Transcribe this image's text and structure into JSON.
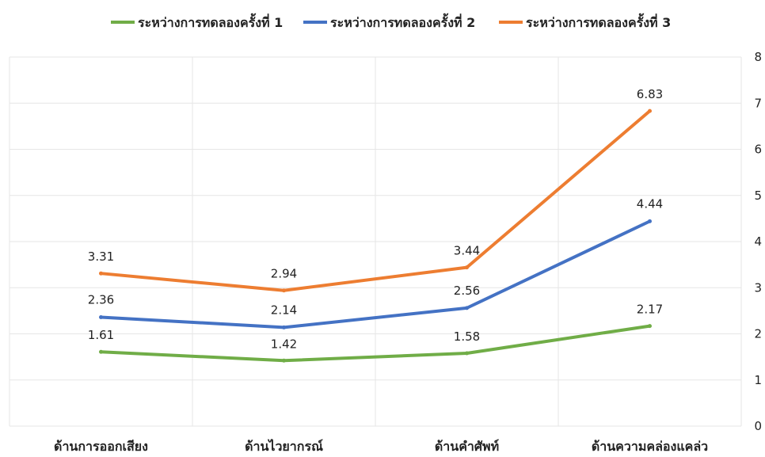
{
  "chart_data": {
    "type": "line",
    "categories": [
      "ด้านการออกเสียง",
      "ด้านไวยากรณ์",
      "ด้านคำศัพท์",
      "ด้านความคล่องแคล่ว"
    ],
    "series": [
      {
        "name": "ระหว่างการทดลองครั้งที่ 1",
        "values": [
          1.61,
          1.42,
          1.58,
          2.17
        ],
        "color": "#70AD47",
        "labels": [
          "1.61",
          "1.42",
          "1.58",
          "2.17"
        ]
      },
      {
        "name": "ระหว่างการทดลองครั้งที่ 2",
        "values": [
          2.36,
          2.14,
          2.56,
          4.44
        ],
        "color": "#4472C4",
        "labels": [
          "2.36",
          "2.14",
          "2.56",
          "4.44"
        ]
      },
      {
        "name": "ระหว่างการทดลองครั้งที่ 3",
        "values": [
          3.31,
          2.94,
          3.44,
          6.83
        ],
        "color": "#ED7D31",
        "labels": [
          "3.31",
          "2.94",
          "3.44",
          "6.83"
        ]
      }
    ],
    "ylim": [
      0,
      8
    ],
    "yticks": [
      "0",
      "1",
      "2",
      "3",
      "4",
      "5",
      "6",
      "7",
      "8"
    ],
    "y_axis_side": "right",
    "legend_position": "top",
    "grid": true
  }
}
